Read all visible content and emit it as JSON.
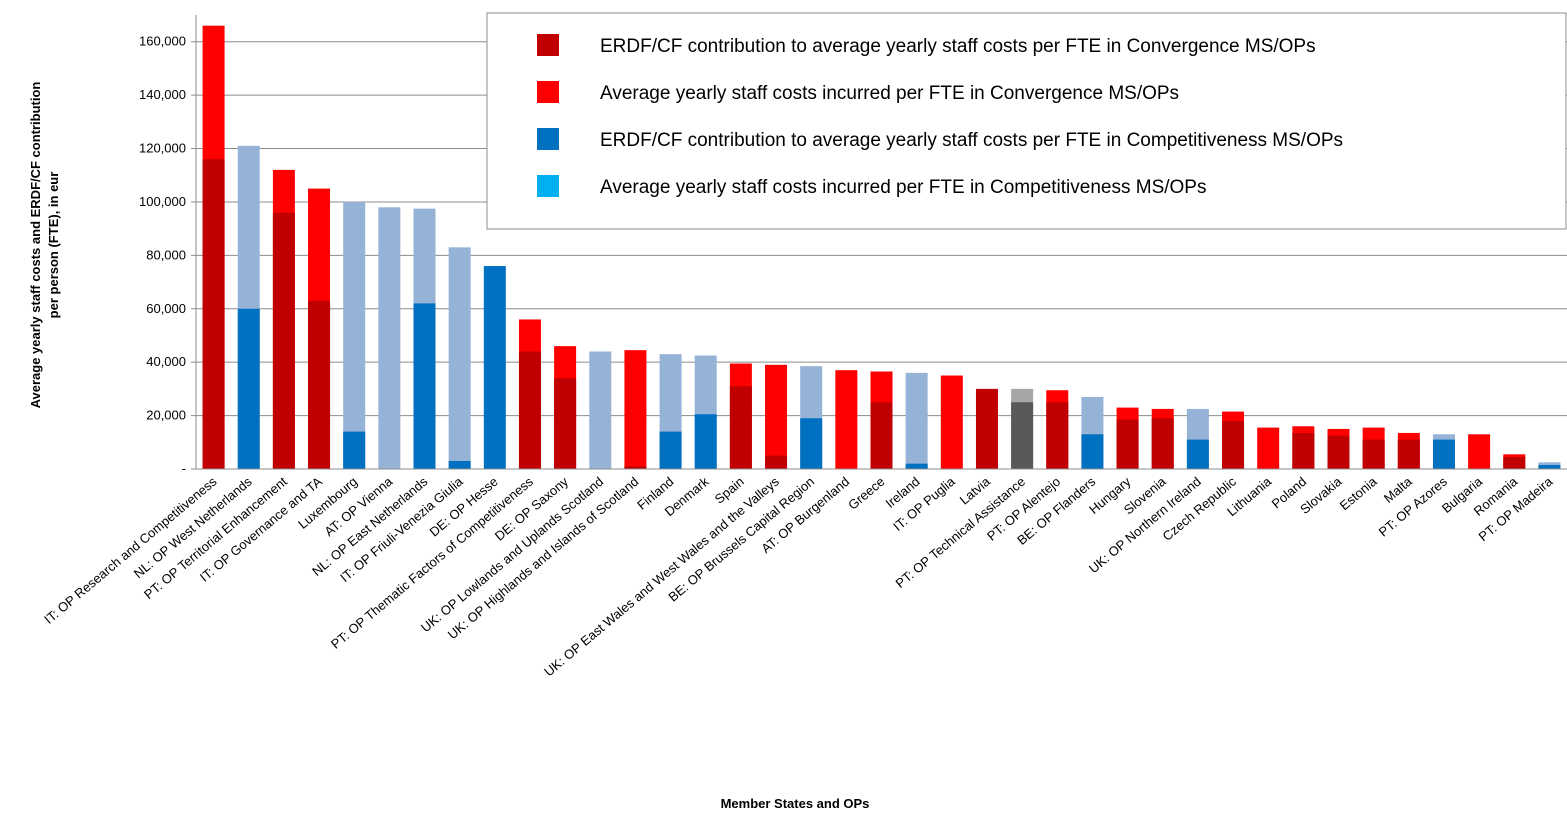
{
  "chart_data": {
    "type": "overlapping_bar",
    "ylabel": [
      "Average yearly staff costs and ERDF/CF contribution",
      "per person (FTE), in eur"
    ],
    "xlabel": "Member States and OPs",
    "categories": [
      "IT: OP Research and Competitiveness",
      "NL: OP West Netherlands",
      "PT: OP Territorial Enhancement",
      "IT: OP Governance and TA",
      "Luxembourg",
      "AT: OP Vienna",
      "NL: OP East Netherlands",
      "IT: OP Friuli-Venezia Giulia",
      "DE: OP Hesse",
      "PT: OP Thematic Factors of Competitiveness",
      "DE: OP Saxony",
      "UK: OP Lowlands and Uplands Scotland",
      "UK: OP Highlands and Islands of Scotland",
      "Finland",
      "Denmark",
      "Spain",
      "UK: OP East Wales and West Wales and the Valleys",
      "BE: OP Brussels Capital Region",
      "AT: OP Burgenland",
      "Greece",
      "Ireland",
      "IT: OP Puglia",
      "Latvia",
      "PT: OP Technical Assistance",
      "PT: OP Alentejo",
      "BE: OP Flanders",
      "Hungary",
      "Slovenia",
      "UK: OP Northern Ireland",
      "Czech Republic",
      "Lithuania",
      "Poland",
      "Slovakia",
      "Estonia",
      "Malta",
      "PT: OP Azores",
      "Bulgaria",
      "Romania",
      "PT: OP Madeira"
    ],
    "series": [
      {
        "name": "ERDF/CF contribution to average yearly staff costs per FTE in Convergence MS/OPs",
        "color": "#c00000",
        "layer": "front",
        "values": [
          116000,
          null,
          96000,
          63000,
          null,
          null,
          null,
          null,
          null,
          44000,
          34000,
          null,
          1000,
          null,
          null,
          31000,
          5000,
          null,
          null,
          25000,
          null,
          null,
          30000,
          null,
          25000,
          null,
          18500,
          19000,
          null,
          18000,
          null,
          13500,
          12500,
          11000,
          11000,
          null,
          null,
          4500,
          null
        ]
      },
      {
        "name": "Average yearly staff costs incurred per FTE in Convergence MS/OPs",
        "color": "#ff0000",
        "layer": "back",
        "values": [
          166000,
          null,
          112000,
          105000,
          null,
          null,
          null,
          null,
          null,
          56000,
          46000,
          null,
          44500,
          null,
          null,
          39500,
          39000,
          null,
          37000,
          36500,
          null,
          35000,
          null,
          null,
          29500,
          null,
          23000,
          22500,
          null,
          21500,
          15500,
          16000,
          15000,
          15500,
          13500,
          null,
          13000,
          5500,
          null
        ]
      },
      {
        "name": "ERDF/CF contribution to average yearly staff costs per FTE in Competitiveness MS/OPs",
        "color": "#0070c0",
        "layer": "front",
        "point_colors": {
          "23": "#595959"
        },
        "values": [
          null,
          60000,
          null,
          null,
          14000,
          null,
          62000,
          3000,
          76000,
          null,
          null,
          null,
          null,
          14000,
          20500,
          null,
          null,
          19000,
          null,
          null,
          2000,
          null,
          null,
          25000,
          null,
          13000,
          null,
          null,
          11000,
          null,
          null,
          null,
          null,
          null,
          null,
          11000,
          null,
          null,
          1500
        ]
      },
      {
        "name": "Average yearly staff costs incurred per FTE in Competitiveness MS/OPs",
        "color": "#00b0f0",
        "bar_color": "#95b3d7",
        "layer": "back",
        "point_colors": {
          "23": "#a6a6a6"
        },
        "values": [
          null,
          121000,
          null,
          null,
          100000,
          98000,
          97500,
          83000,
          null,
          null,
          null,
          44000,
          null,
          43000,
          42500,
          null,
          null,
          38500,
          null,
          null,
          36000,
          null,
          null,
          30000,
          null,
          27000,
          null,
          null,
          22500,
          null,
          null,
          null,
          null,
          null,
          null,
          13000,
          null,
          null,
          2500
        ]
      }
    ],
    "ylim": [
      0,
      170000
    ],
    "yticks": [
      {
        "value": 0,
        "label": "-"
      },
      {
        "value": 20000,
        "label": "20,000"
      },
      {
        "value": 40000,
        "label": "40,000"
      },
      {
        "value": 60000,
        "label": "60,000"
      },
      {
        "value": 80000,
        "label": "80,000"
      },
      {
        "value": 100000,
        "label": "100,000"
      },
      {
        "value": 120000,
        "label": "120,000"
      },
      {
        "value": 140000,
        "label": "140,000"
      },
      {
        "value": 160000,
        "label": "160,000"
      }
    ],
    "grid": true,
    "legend": "top-right"
  }
}
